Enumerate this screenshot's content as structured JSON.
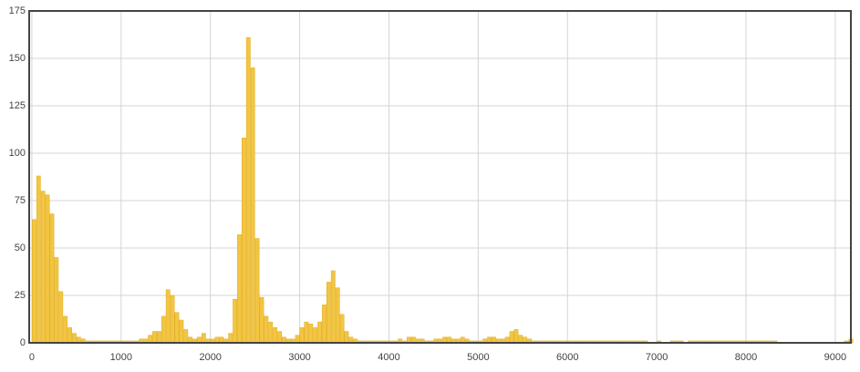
{
  "chart_data": {
    "type": "histogram",
    "color": "#f2c543",
    "edge_color": "#e0ac1c",
    "grid": true,
    "xlim": [
      -30,
      9175
    ],
    "ylim": [
      0,
      175
    ],
    "xticks": [
      0,
      1000,
      2000,
      3000,
      4000,
      5000,
      6000,
      7000,
      8000,
      9000
    ],
    "yticks": [
      0,
      25,
      50,
      75,
      100,
      125,
      150,
      175
    ],
    "bins": [
      0,
      50,
      100,
      150,
      200,
      250,
      300,
      350,
      400,
      450,
      500,
      550,
      600,
      650,
      700,
      750,
      800,
      850,
      900,
      950,
      1000,
      1050,
      1100,
      1150,
      1200,
      1250,
      1300,
      1350,
      1400,
      1450,
      1500,
      1550,
      1600,
      1650,
      1700,
      1750,
      1800,
      1850,
      1900,
      1950,
      2000,
      2050,
      2100,
      2150,
      2200,
      2250,
      2300,
      2350,
      2400,
      2450,
      2500,
      2550,
      2600,
      2650,
      2700,
      2750,
      2800,
      2850,
      2900,
      2950,
      3000,
      3050,
      3100,
      3150,
      3200,
      3250,
      3300,
      3350,
      3400,
      3450,
      3500,
      3550,
      3600,
      3650,
      3700,
      3750,
      3800,
      3850,
      3900,
      3950,
      4000,
      4050,
      4100,
      4150,
      4200,
      4250,
      4300,
      4350,
      4400,
      4450,
      4500,
      4550,
      4600,
      4650,
      4700,
      4750,
      4800,
      4850,
      4900,
      4950,
      5000,
      5050,
      5100,
      5150,
      5200,
      5250,
      5300,
      5350,
      5400,
      5450,
      5500,
      5550,
      5600,
      5650,
      5700,
      5750,
      5800,
      5850,
      5900,
      5950,
      6000,
      6050,
      6100,
      6150,
      6200,
      6250,
      6300,
      6350,
      6400,
      6450,
      6500,
      6550,
      6600,
      6650,
      6700,
      6750,
      6800,
      6850,
      6900,
      6950,
      7000,
      7050,
      7100,
      7150,
      7200,
      7250,
      7300,
      7350,
      7400,
      7450,
      7500,
      7550,
      7600,
      7650,
      7700,
      7750,
      7800,
      7850,
      7900,
      7950,
      8000,
      8050,
      8100,
      8150,
      8200,
      8250,
      8300,
      8350,
      8400,
      8450,
      8500,
      8550,
      8600,
      8650,
      8700,
      8750,
      8800,
      8850,
      8900,
      8950,
      9000,
      9050,
      9100,
      9150,
      9200
    ],
    "values": [
      65,
      88,
      80,
      78,
      68,
      45,
      27,
      14,
      8,
      5,
      3,
      2,
      1,
      1,
      1,
      1,
      1,
      1,
      1,
      1,
      1,
      1,
      1,
      1,
      2,
      2,
      4,
      6,
      6,
      14,
      28,
      25,
      16,
      12,
      7,
      3,
      2,
      3,
      5,
      2,
      2,
      3,
      3,
      2,
      5,
      23,
      57,
      108,
      161,
      145,
      55,
      24,
      14,
      11,
      8,
      6,
      3,
      2,
      2,
      4,
      8,
      11,
      10,
      8,
      11,
      20,
      32,
      38,
      29,
      15,
      6,
      3,
      2,
      1,
      1,
      1,
      1,
      1,
      1,
      1,
      1,
      1,
      2,
      1,
      3,
      3,
      2,
      2,
      1,
      1,
      2,
      2,
      3,
      3,
      2,
      2,
      3,
      2,
      1,
      1,
      1,
      2,
      3,
      3,
      2,
      2,
      3,
      6,
      7,
      4,
      3,
      2,
      1,
      1,
      1,
      1,
      1,
      1,
      1,
      1,
      1,
      1,
      1,
      1,
      1,
      1,
      1,
      1,
      1,
      1,
      1,
      1,
      1,
      1,
      1,
      1,
      1,
      1,
      0,
      0,
      1,
      0,
      0,
      1,
      1,
      1,
      0,
      1,
      1,
      1,
      1,
      1,
      1,
      1,
      1,
      1,
      1,
      1,
      1,
      1,
      1,
      1,
      1,
      1,
      1,
      1,
      1,
      0,
      0,
      0,
      0,
      0,
      0,
      0,
      0,
      0,
      0,
      0,
      0,
      0,
      0,
      0,
      1,
      2
    ]
  }
}
